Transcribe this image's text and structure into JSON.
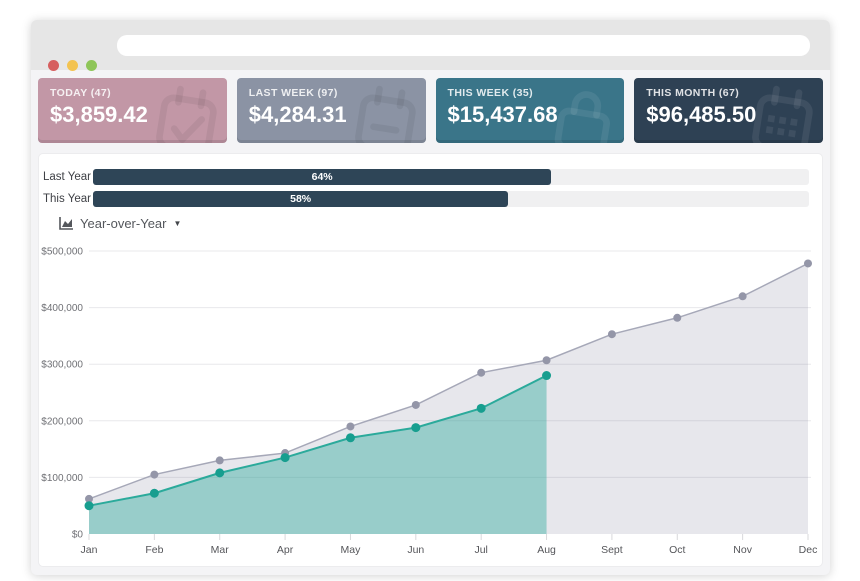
{
  "window": {
    "address_value": "",
    "traffic_lights": [
      "#d65f5f",
      "#f3c350",
      "#8ec558"
    ]
  },
  "cards": [
    {
      "label": "TODAY (47)",
      "amount": "$3,859.42",
      "color": "#c297a6",
      "icon": "calendar-check-icon"
    },
    {
      "label": "LAST WEEK (97)",
      "amount": "$4,284.31",
      "color": "#8b93a4",
      "icon": "calendar-minus-icon"
    },
    {
      "label": "THIS WEEK (35)",
      "amount": "$15,437.68",
      "color": "#3a7589",
      "icon": "bag-lock-icon"
    },
    {
      "label": "THIS MONTH (67)",
      "amount": "$96,485.50",
      "color": "#2e4154",
      "icon": "calendar-grid-icon"
    }
  ],
  "progress": {
    "bar_color": "#2e4557",
    "track_color": "#f0f0f1",
    "rows": [
      {
        "label": "Last Year",
        "percent": 64,
        "percent_label": "64%"
      },
      {
        "label": "This Year",
        "percent": 58,
        "percent_label": "58%"
      }
    ]
  },
  "dropdown": {
    "label": "Year-over-Year",
    "caret": "▼"
  },
  "chart_data": {
    "type": "area",
    "title": "",
    "xlabel": "",
    "ylabel": "",
    "grid": true,
    "legend_position": "none",
    "categories": [
      "Jan",
      "Feb",
      "Mar",
      "Apr",
      "May",
      "Jun",
      "Jul",
      "Aug",
      "Sept",
      "Oct",
      "Nov",
      "Dec"
    ],
    "ylim": [
      0,
      500000
    ],
    "y_ticks": [
      "$500,000",
      "$400,000",
      "$300,000",
      "$200,000",
      "$100,000",
      "$0"
    ],
    "series": [
      {
        "name": "last-year",
        "values": [
          62000,
          105000,
          130000,
          143000,
          190000,
          228000,
          285000,
          307000,
          353000,
          382000,
          420000,
          478000
        ],
        "line_color": "#a6a8b8",
        "fill_color": "rgba(120,123,150,0.18)",
        "dot_color": "#9496a8"
      },
      {
        "name": "this-year",
        "values": [
          50000,
          72000,
          108000,
          135000,
          170000,
          188000,
          222000,
          280000
        ],
        "line_color": "#2baa9b",
        "fill_color": "rgba(43,170,155,0.42)",
        "dot_color": "#179e8f"
      }
    ]
  }
}
